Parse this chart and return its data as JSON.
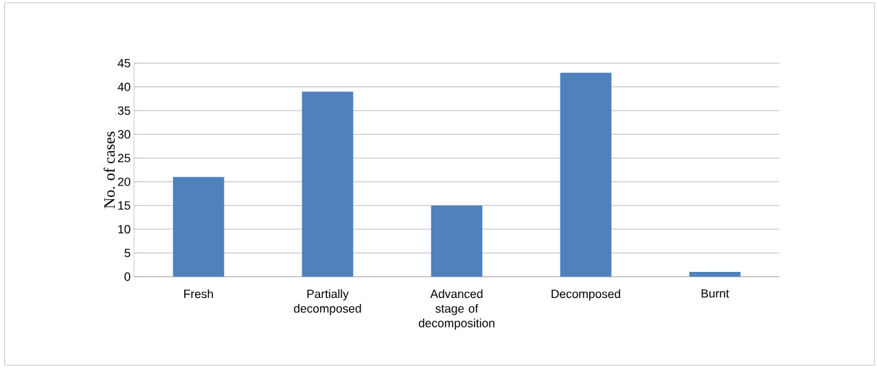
{
  "chart_data": {
    "type": "bar",
    "ylabel": "No. of cases",
    "categories": [
      "Fresh",
      "Partially decomposed",
      "Advanced stage of decomposition",
      "Decomposed",
      "Burnt"
    ],
    "values": [
      21,
      39,
      15,
      43,
      1
    ],
    "color": "#4f81bd",
    "ylim": [
      0,
      45
    ],
    "yticks": [
      0,
      5,
      10,
      15,
      20,
      25,
      30,
      35,
      40,
      45
    ],
    "grid": "y"
  }
}
